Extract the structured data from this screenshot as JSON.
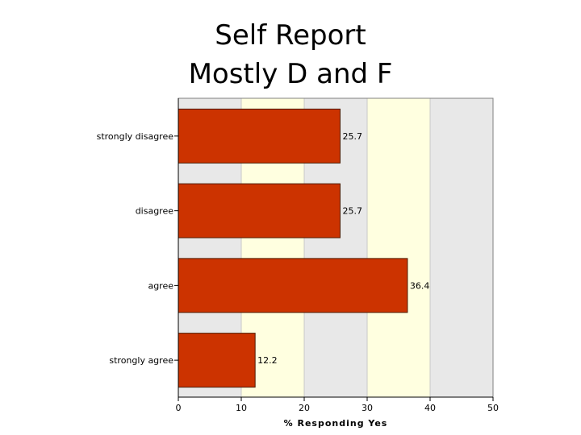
{
  "chart_data": {
    "type": "bar",
    "orientation": "horizontal",
    "title_lines": [
      "Self Report",
      "Mostly D and F"
    ],
    "categories": [
      "strongly disagree",
      "disagree",
      "agree",
      "strongly agree"
    ],
    "values": [
      25.7,
      25.7,
      36.4,
      12.2
    ],
    "data_labels": [
      "25.7",
      "25.7",
      "36.4",
      "12.2"
    ],
    "xlabel": "% Responding Yes",
    "ylabel": "",
    "xlim": [
      0,
      50
    ],
    "x_ticks": [
      "0",
      "10",
      "20",
      "30",
      "40",
      "50"
    ],
    "grid": true,
    "legend": "none"
  },
  "colors": {
    "bar_fill": "#cc3300",
    "bar_stroke": "#4d1a00",
    "band_light": "#ffffe0",
    "band_grey": "#e8e8e8",
    "gridline": "#c8c8c8",
    "axis": "#000000",
    "frame": "#808080"
  }
}
